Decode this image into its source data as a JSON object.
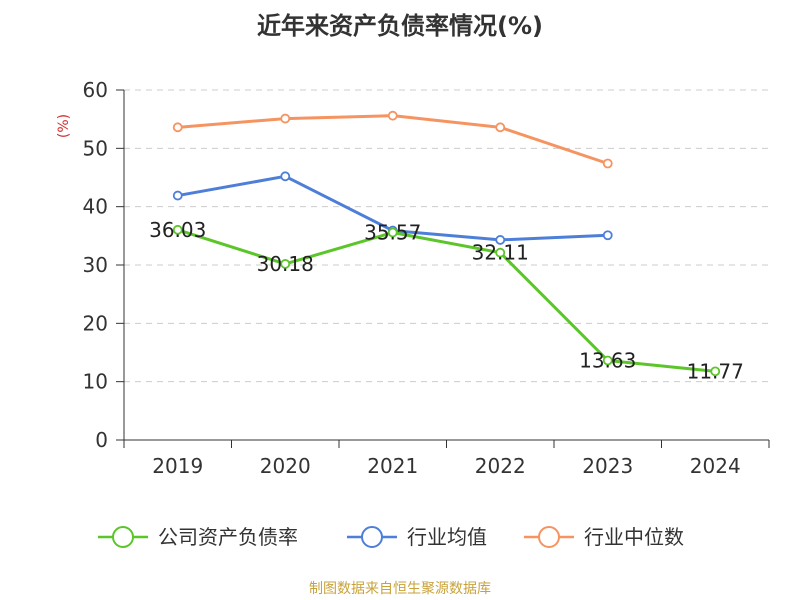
{
  "chart_data": {
    "type": "line",
    "title": "近年来资产负债率情况(%)",
    "ylabel": "(%)",
    "xlabel": "",
    "categories": [
      "2019",
      "2020",
      "2021",
      "2022",
      "2023",
      "2024"
    ],
    "ylim": [
      0,
      60
    ],
    "yticks": [
      0,
      10,
      20,
      30,
      40,
      50,
      60
    ],
    "grid": true,
    "legend_position": "bottom",
    "series": [
      {
        "name": "公司资产负债率",
        "color": "#5cc52a",
        "values": [
          36.03,
          30.18,
          35.57,
          32.11,
          13.63,
          11.77
        ],
        "show_labels": true
      },
      {
        "name": "行业均值",
        "color": "#4e7fd8",
        "values": [
          41.9,
          45.2,
          35.9,
          34.3,
          35.1,
          null
        ],
        "show_labels": false
      },
      {
        "name": "行业中位数",
        "color": "#f59460",
        "values": [
          53.6,
          55.1,
          55.6,
          53.6,
          47.4,
          null
        ],
        "show_labels": false
      }
    ]
  },
  "source": "制图数据来自恒生聚源数据库"
}
